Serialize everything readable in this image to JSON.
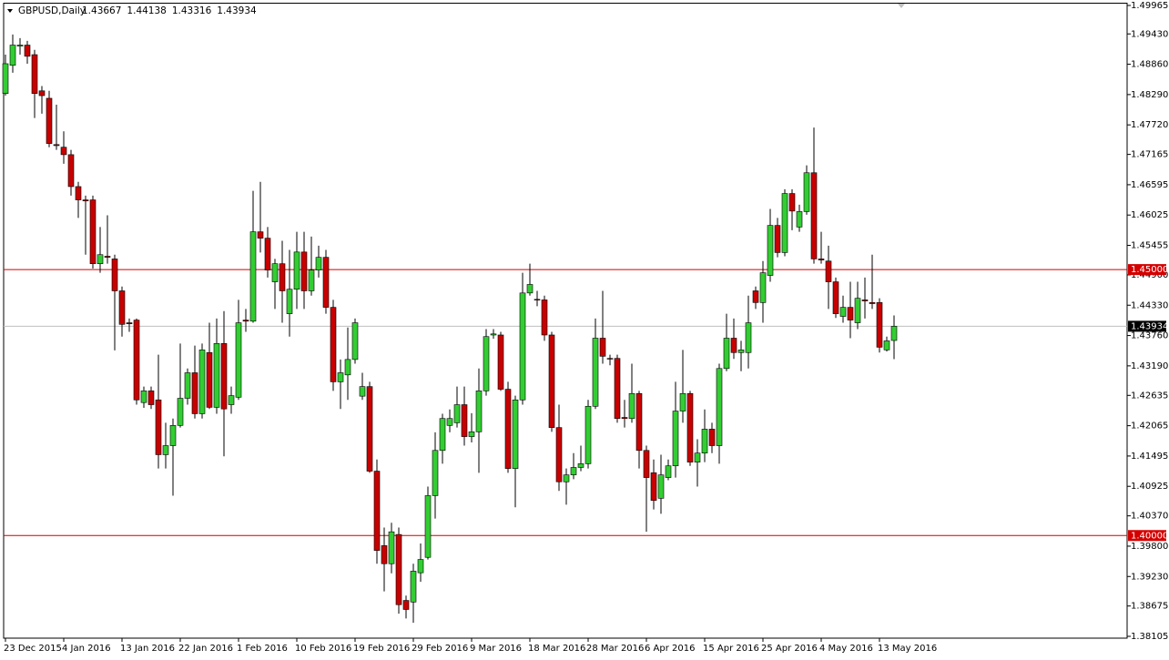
{
  "chart_data": {
    "type": "candlestick",
    "symbol": "GBPUSD,Daily",
    "header_values": [
      1.43667,
      1.44138,
      1.43316,
      1.43934
    ],
    "up_color": "#32cd32",
    "down_color": "#c80000",
    "xlim": [
      0,
      154
    ],
    "ylim": [
      1.38105,
      1.49965
    ],
    "yticks": [
      1.49965,
      {
        "value": 1.4943,
        "label": "1.49430"
      },
      {
        "value": 1.4886,
        "label": "1.48860"
      },
      {
        "value": 1.4829,
        "label": "1.48290"
      },
      {
        "value": 1.4772,
        "label": "1.47720"
      },
      1.47165,
      1.46595,
      1.46025,
      1.45455,
      {
        "value": 1.449,
        "label": "1.44900"
      },
      {
        "value": 1.4433,
        "label": "1.44330"
      },
      {
        "value": 1.4376,
        "label": "1.43760"
      },
      {
        "value": 1.4319,
        "label": "1.43190"
      },
      1.42635,
      1.42065,
      1.41495,
      1.40925,
      {
        "value": 1.4037,
        "label": "1.40370"
      },
      {
        "value": 1.398,
        "label": "1.39800"
      },
      {
        "value": 1.3923,
        "label": "1.39230"
      },
      1.38675,
      1.38105
    ],
    "xticks": [
      {
        "value": 0,
        "label": "23 Dec 2015"
      },
      {
        "value": 8,
        "label": "4 Jan 2016"
      },
      {
        "value": 16,
        "label": "13 Jan 2016"
      },
      {
        "value": 24,
        "label": "22 Jan 2016"
      },
      {
        "value": 32,
        "label": "1 Feb 2016"
      },
      {
        "value": 40,
        "label": "10 Feb 2016"
      },
      {
        "value": 48,
        "label": "19 Feb 2016"
      },
      {
        "value": 56,
        "label": "29 Feb 2016"
      },
      {
        "value": 64,
        "label": "9 Mar 2016"
      },
      {
        "value": 72,
        "label": "18 Mar 2016"
      },
      {
        "value": 80,
        "label": "28 Mar 2016"
      },
      {
        "value": 88,
        "label": "6 Apr 2016"
      },
      {
        "value": 96,
        "label": "15 Apr 2016"
      },
      {
        "value": 104,
        "label": "25 Apr 2016"
      },
      {
        "value": 112,
        "label": "4 May 2016"
      },
      {
        "value": 120,
        "label": "13 May 2016"
      }
    ],
    "hlines": [
      {
        "value": 1.45,
        "label": "1.45000",
        "color": "#d40000"
      },
      {
        "value": 1.4,
        "label": "1.40000",
        "color": "#d40000"
      }
    ],
    "price_line": {
      "value": 1.43934,
      "label": "1.43934",
      "color": "#c0c0c0"
    },
    "open": [
      1.4831,
      1.4884,
      1.492,
      1.4922,
      1.4904,
      1.4836,
      1.4822,
      1.4735,
      1.473,
      1.4716,
      1.4656,
      1.4631,
      1.4631,
      1.4511,
      1.4525,
      1.452,
      1.446,
      1.44,
      1.4405,
      1.425,
      1.4272,
      1.4255,
      1.4152,
      1.4169,
      1.4207,
      1.4258,
      1.4306,
      1.4229,
      1.4344,
      1.4241,
      1.4361,
      1.4246,
      1.426,
      1.4405,
      1.4403,
      1.4571,
      1.4559,
      1.4477,
      1.4511,
      1.4417,
      1.4463,
      1.4533,
      1.446,
      1.4499,
      1.4523,
      1.4429,
      1.4289,
      1.4302,
      1.4331,
      1.4262,
      1.428,
      1.4121,
      1.3981,
      1.3947,
      1.4002,
      1.3878,
      1.3875,
      1.393,
      1.3959,
      1.4075,
      1.416,
      1.4207,
      1.4212,
      1.4246,
      1.4186,
      1.4195,
      1.4272,
      1.4377,
      1.4377,
      1.4275,
      1.4126,
      1.4255,
      1.4456,
      1.4444,
      1.4443,
      1.4377,
      1.4203,
      1.4101,
      1.4114,
      1.4128,
      1.4135,
      1.4243,
      1.4371,
      1.4333,
      1.4333,
      1.4222,
      1.422,
      1.4267,
      1.416,
      1.4118,
      1.407,
      1.4109,
      1.4131,
      1.4234,
      1.4267,
      1.4138,
      1.4155,
      1.42,
      1.4169,
      1.4314,
      1.4371,
      1.4344,
      1.4344,
      1.446,
      1.4438,
      1.4489,
      1.4583,
      1.4532,
      1.4643,
      1.458,
      1.4609,
      1.4682,
      1.452,
      1.4516,
      1.4477,
      1.4412,
      1.4429,
      1.44,
      1.4443,
      1.4438,
      1.4438,
      1.4349,
      1.43667
    ],
    "high": [
      1.4904,
      1.4942,
      1.4935,
      1.493,
      1.4913,
      1.4845,
      1.4836,
      1.481,
      1.476,
      1.4725,
      1.4665,
      1.4639,
      1.4639,
      1.458,
      1.4602,
      1.4528,
      1.4468,
      1.4408,
      1.4408,
      1.428,
      1.428,
      1.434,
      1.4212,
      1.422,
      1.4361,
      1.4314,
      1.4357,
      1.4361,
      1.44,
      1.4408,
      1.4422,
      1.428,
      1.4443,
      1.4426,
      1.4648,
      1.4665,
      1.458,
      1.452,
      1.4554,
      1.4537,
      1.4571,
      1.4571,
      1.4562,
      1.4545,
      1.4537,
      1.4443,
      1.4331,
      1.4391,
      1.4408,
      1.4306,
      1.4289,
      1.4143,
      1.4015,
      1.4024,
      1.4015,
      1.3887,
      1.3947,
      1.3985,
      1.4092,
      1.4194,
      1.4229,
      1.4237,
      1.428,
      1.428,
      1.423,
      1.4314,
      1.4388,
      1.4388,
      1.4383,
      1.4289,
      1.4263,
      1.4494,
      1.4511,
      1.446,
      1.4451,
      1.4383,
      1.4246,
      1.4126,
      1.4155,
      1.4169,
      1.4255,
      1.4408,
      1.446,
      1.434,
      1.434,
      1.4255,
      1.4323,
      1.4272,
      1.4169,
      1.4143,
      1.4152,
      1.4143,
      1.4289,
      1.4349,
      1.4272,
      1.4181,
      1.4237,
      1.4212,
      1.4323,
      1.4417,
      1.4408,
      1.4366,
      1.4451,
      1.4468,
      1.4516,
      1.4614,
      1.4597,
      1.4651,
      1.4651,
      1.4622,
      1.4696,
      1.4767,
      1.4571,
      1.4545,
      1.4485,
      1.4451,
      1.4477,
      1.4477,
      1.4485,
      1.4528,
      1.4446,
      1.4374,
      1.44138
    ],
    "low": [
      1.4827,
      1.487,
      1.4904,
      1.4887,
      1.4785,
      1.4793,
      1.473,
      1.4725,
      1.4699,
      1.4639,
      1.4597,
      1.4528,
      1.4502,
      1.4494,
      1.4511,
      1.4348,
      1.4374,
      1.4383,
      1.4246,
      1.424,
      1.4238,
      1.4126,
      1.4126,
      1.4075,
      1.4203,
      1.4246,
      1.422,
      1.422,
      1.4238,
      1.4229,
      1.4149,
      1.4229,
      1.4255,
      1.4383,
      1.44,
      1.4532,
      1.4485,
      1.4426,
      1.44,
      1.4374,
      1.4426,
      1.4426,
      1.4451,
      1.4485,
      1.4417,
      1.4272,
      1.4238,
      1.4255,
      1.4323,
      1.4255,
      1.4118,
      1.3947,
      1.3895,
      1.3929,
      1.3853,
      1.3844,
      1.3836,
      1.3913,
      1.3955,
      1.4032,
      1.4135,
      1.4194,
      1.4203,
      1.4169,
      1.4175,
      1.4118,
      1.4263,
      1.437,
      1.4272,
      1.4118,
      1.4053,
      1.4246,
      1.4451,
      1.4431,
      1.4366,
      1.4195,
      1.4084,
      1.4058,
      1.4106,
      1.4121,
      1.4126,
      1.4238,
      1.4323,
      1.432,
      1.4212,
      1.4203,
      1.4212,
      1.4126,
      1.4007,
      1.4049,
      1.4041,
      1.4104,
      1.4109,
      1.4212,
      1.4131,
      1.4092,
      1.4138,
      1.4155,
      1.4135,
      1.4309,
      1.4332,
      1.4309,
      1.4314,
      1.4426,
      1.44,
      1.4477,
      1.4523,
      1.4525,
      1.4574,
      1.4571,
      1.4603,
      1.4511,
      1.4511,
      1.4426,
      1.4409,
      1.44,
      1.4371,
      1.4388,
      1.4408,
      1.4426,
      1.4344,
      1.4346,
      1.43316
    ],
    "close": [
      1.4887,
      1.4922,
      1.4922,
      1.4901,
      1.4831,
      1.4827,
      1.4737,
      1.4733,
      1.4716,
      1.4656,
      1.4631,
      1.4629,
      1.4511,
      1.4528,
      1.4523,
      1.446,
      1.4397,
      1.4398,
      1.4255,
      1.4272,
      1.4246,
      1.4152,
      1.4169,
      1.4207,
      1.4258,
      1.4306,
      1.4229,
      1.4349,
      1.4241,
      1.4361,
      1.4238,
      1.4263,
      1.44,
      1.4403,
      1.4571,
      1.4559,
      1.4499,
      1.4511,
      1.446,
      1.4463,
      1.4533,
      1.446,
      1.4499,
      1.4523,
      1.4429,
      1.4289,
      1.4306,
      1.4331,
      1.44,
      1.428,
      1.4121,
      1.3972,
      1.3947,
      1.4007,
      1.387,
      1.3861,
      1.3933,
      1.3955,
      1.4075,
      1.416,
      1.422,
      1.422,
      1.4246,
      1.4186,
      1.4195,
      1.4272,
      1.4374,
      1.4379,
      1.4275,
      1.4126,
      1.4255,
      1.4456,
      1.4472,
      1.4443,
      1.4377,
      1.4203,
      1.4101,
      1.4114,
      1.4128,
      1.4135,
      1.4243,
      1.4371,
      1.4337,
      1.4332,
      1.422,
      1.422,
      1.4267,
      1.416,
      1.4109,
      1.4066,
      1.4114,
      1.4131,
      1.4234,
      1.4267,
      1.4138,
      1.4155,
      1.42,
      1.4169,
      1.4314,
      1.4371,
      1.4344,
      1.4349,
      1.44,
      1.4438,
      1.4494,
      1.4583,
      1.4532,
      1.4643,
      1.461,
      1.4609,
      1.4682,
      1.452,
      1.4518,
      1.4477,
      1.4417,
      1.4429,
      1.4405,
      1.4446,
      1.4441,
      1.4436,
      1.4354,
      1.4366,
      1.43934
    ]
  }
}
